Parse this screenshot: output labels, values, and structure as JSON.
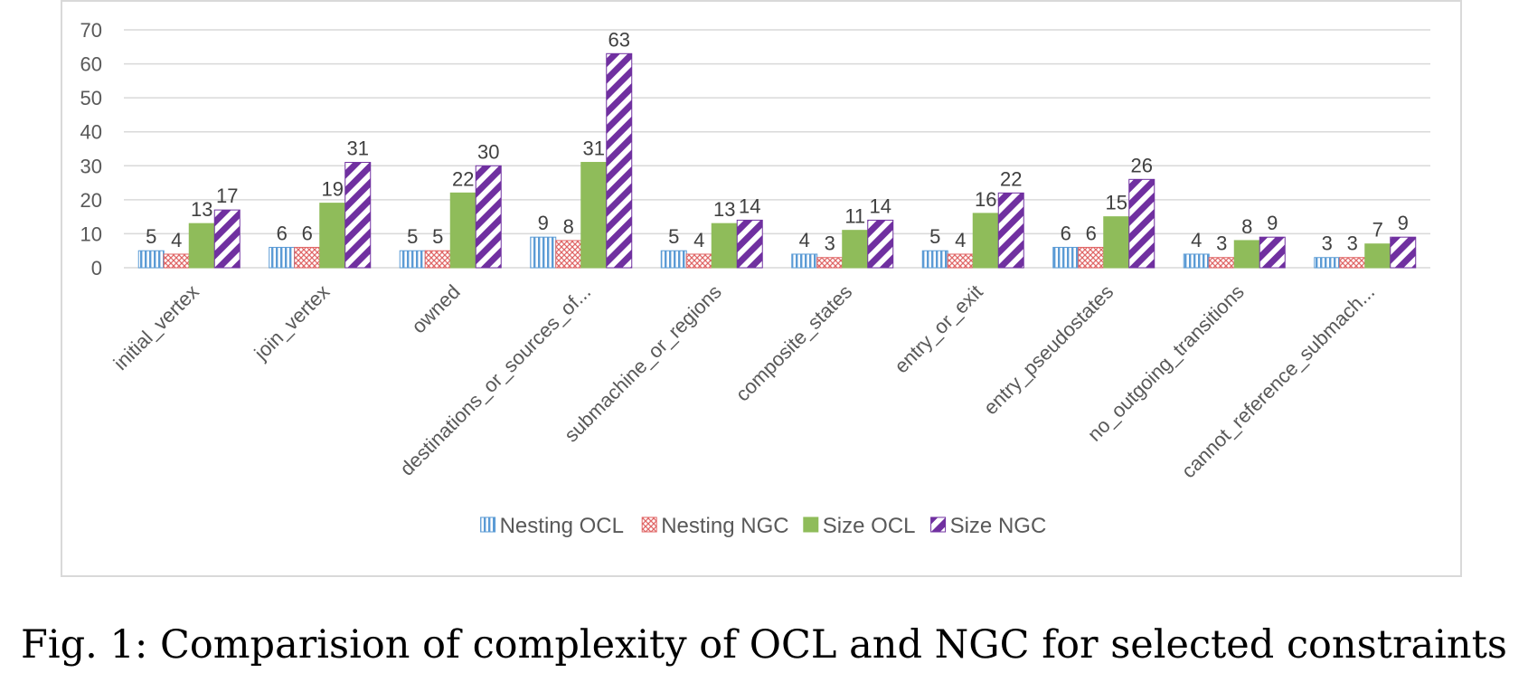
{
  "chart_data": {
    "type": "bar",
    "categories": [
      "initial_vertex",
      "join_vertex",
      "owned",
      "destinations_or_sources_of...",
      "submachine_or_regions",
      "composite_states",
      "entry_or_exit",
      "entry_pseudostates",
      "no_outgoing_transitions",
      "cannot_reference_submach..."
    ],
    "series": [
      {
        "name": "Nesting OCL",
        "values": [
          5,
          6,
          5,
          9,
          5,
          4,
          5,
          6,
          4,
          3
        ],
        "color": "#5b9bd5",
        "pattern": "vertical-lines"
      },
      {
        "name": "Nesting NGC",
        "values": [
          4,
          6,
          5,
          8,
          4,
          3,
          4,
          6,
          3,
          3
        ],
        "color": "#e06666",
        "pattern": "crosshatch"
      },
      {
        "name": "Size OCL",
        "values": [
          13,
          19,
          22,
          31,
          13,
          11,
          16,
          15,
          8,
          7
        ],
        "color": "#8fbc5a",
        "pattern": "solid"
      },
      {
        "name": "Size NGC",
        "values": [
          17,
          31,
          30,
          63,
          14,
          14,
          22,
          26,
          9,
          9
        ],
        "color": "#7030a0",
        "pattern": "wide-diagonal"
      }
    ],
    "yticks": [
      "0",
      "10",
      "20",
      "30",
      "40",
      "50",
      "60",
      "70"
    ],
    "ylim": [
      0,
      70
    ],
    "grid": true,
    "legend": "bottom",
    "data_labels": true
  },
  "caption": "Fig. 1: Comparision of complexity of OCL and NGC for selected constraints"
}
